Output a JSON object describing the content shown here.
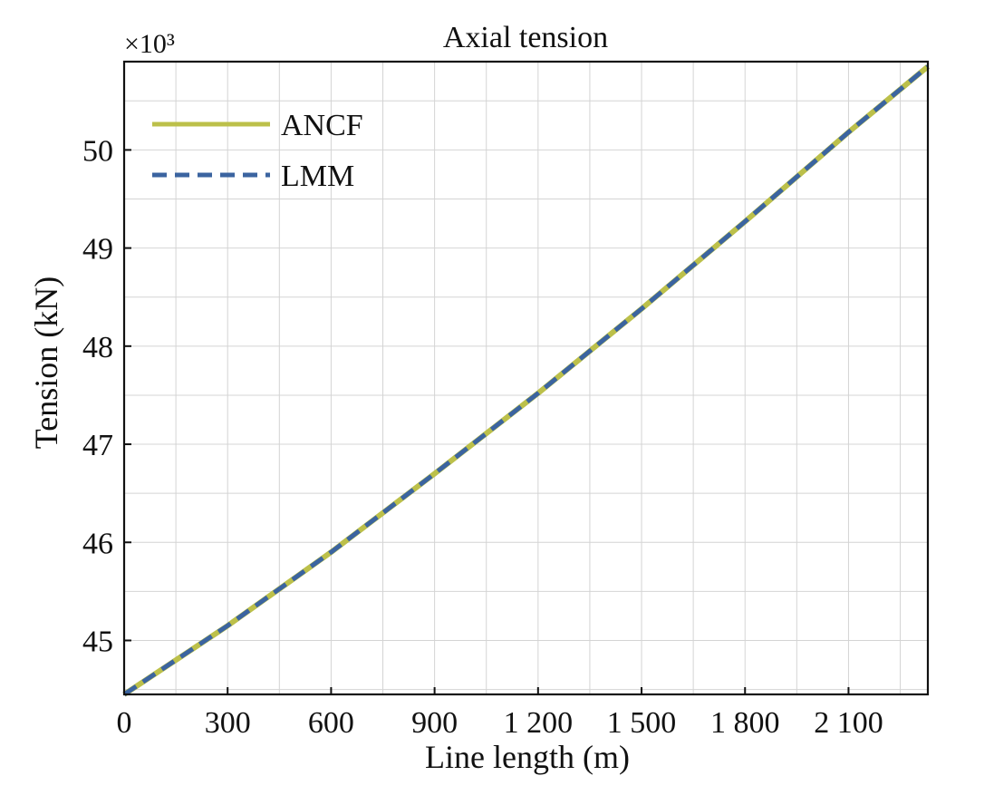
{
  "chart_data": {
    "type": "line",
    "title": "Axial tension",
    "xlabel": "Line length (m)",
    "ylabel": "Tension (kN)",
    "y_multiplier_label": "×10³",
    "xlim": [
      0,
      2330
    ],
    "ylim": [
      44.45,
      50.9
    ],
    "x_ticks": [
      0,
      300,
      600,
      900,
      1200,
      1500,
      1800,
      2100
    ],
    "x_tick_labels": [
      "0",
      "300",
      "600",
      "900",
      "1 200",
      "1 500",
      "1 800",
      "2 100"
    ],
    "y_ticks": [
      45,
      46,
      47,
      48,
      49,
      50
    ],
    "y_tick_labels": [
      "45",
      "46",
      "47",
      "48",
      "49",
      "50"
    ],
    "grid": true,
    "legend_position": "top-left",
    "series": [
      {
        "name": "ANCF",
        "color": "#bcc04a",
        "style": "solid",
        "x": [
          0,
          300,
          600,
          900,
          1200,
          1500,
          1800,
          2100,
          2330
        ],
        "y": [
          44.45,
          45.15,
          45.9,
          46.7,
          47.52,
          48.38,
          49.27,
          50.18,
          50.85
        ]
      },
      {
        "name": "LMM",
        "color": "#3b64a0",
        "style": "dashed",
        "x": [
          0,
          300,
          600,
          900,
          1200,
          1500,
          1800,
          2100,
          2330
        ],
        "y": [
          44.45,
          45.15,
          45.9,
          46.7,
          47.52,
          48.38,
          49.27,
          50.18,
          50.85
        ]
      }
    ]
  }
}
